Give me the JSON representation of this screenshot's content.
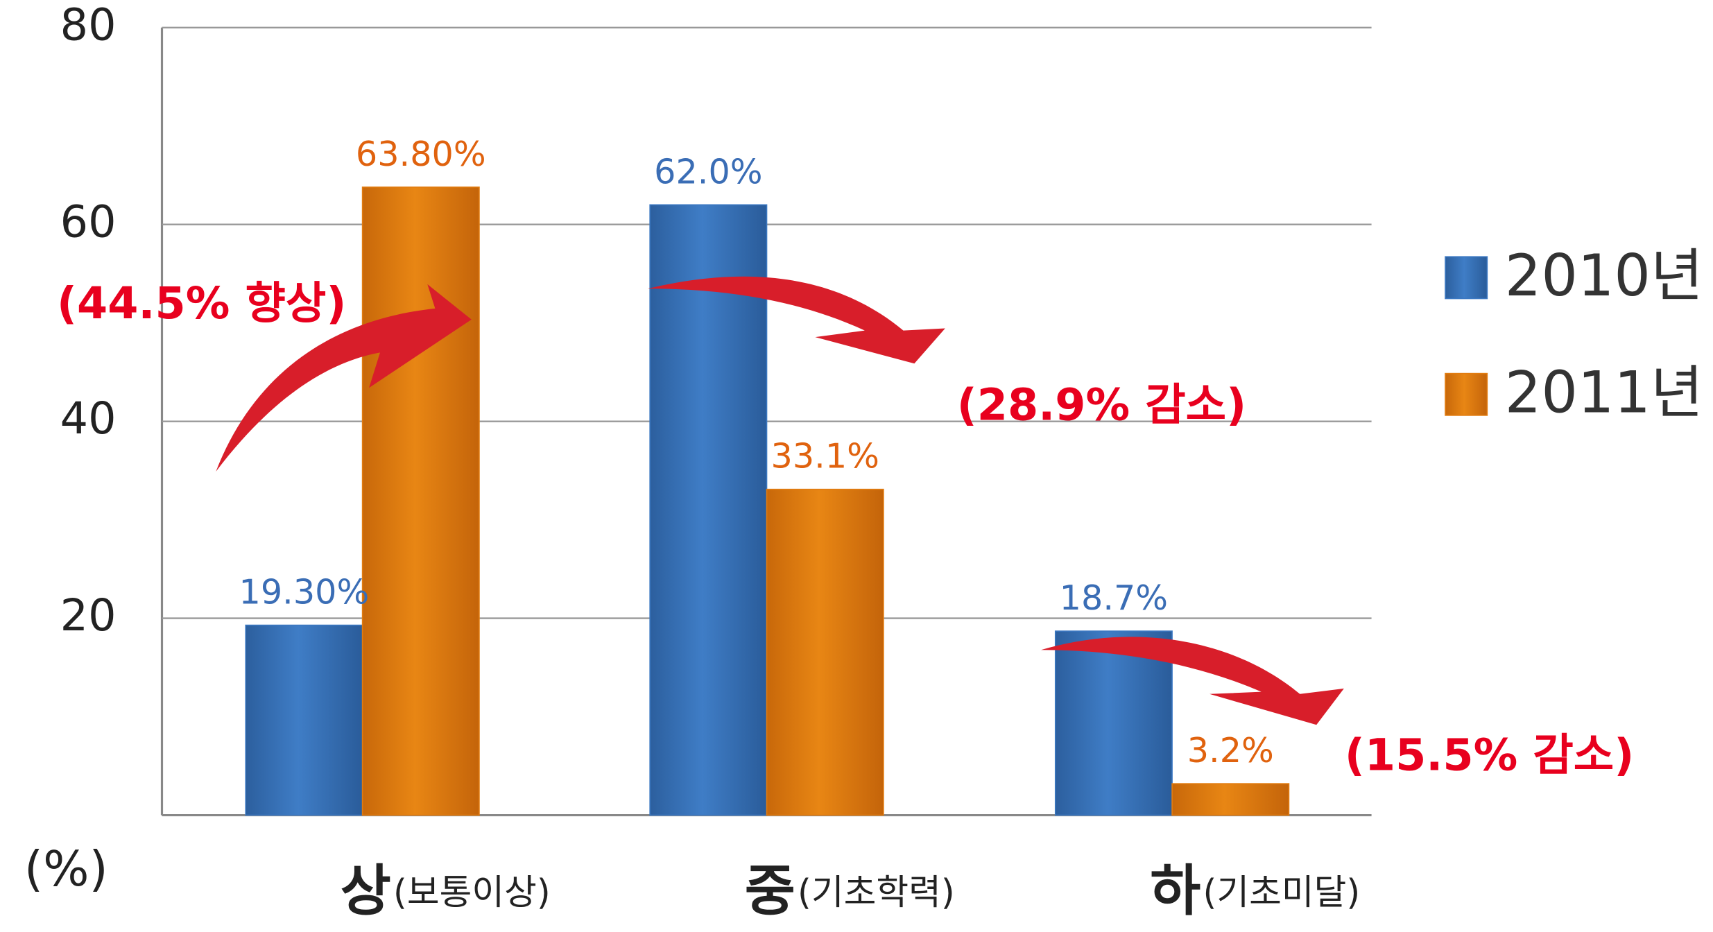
{
  "chart_data": {
    "type": "bar",
    "categories": [
      "상",
      "중",
      "하"
    ],
    "category_notes": [
      "(보통이상)",
      "(기초학력)",
      "(기초미달)"
    ],
    "series": [
      {
        "name": "2010년",
        "color": "#3b78c2",
        "label_color": "#3a6db5",
        "values": [
          19.3,
          62.0,
          18.7
        ],
        "value_labels": [
          "19.30%",
          "62.0%",
          "18.7%"
        ]
      },
      {
        "name": "2011년",
        "color": "#e27c10",
        "label_color": "#e0620e",
        "values": [
          63.8,
          33.1,
          3.2
        ],
        "value_labels": [
          "63.80%",
          "33.1%",
          "3.2%"
        ]
      }
    ],
    "ylim": [
      0,
      80
    ],
    "yticks": [
      20,
      40,
      60,
      80
    ],
    "grid": true,
    "y_unit_label": "(%)",
    "annotations": [
      "(44.5% 향상)",
      "(28.9% 감소)",
      "(15.5% 감소)"
    ],
    "legend_position": "right"
  }
}
